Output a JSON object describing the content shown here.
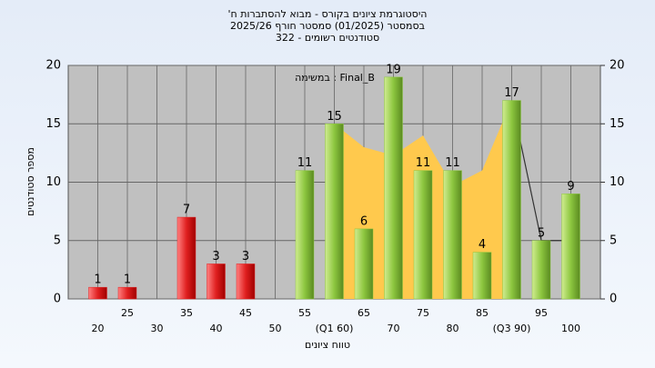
{
  "chart_data": {
    "type": "bar",
    "title_lines": [
      "היסטוגרמת ציונים בקורס - מבוא להסתברות ח'",
      "בסמסטר  (01/2025)  סמסטר חורף 2025/26",
      "סטודנטים רשומים - 322"
    ],
    "annotation": "במשימה : Final_B",
    "y_label": "מספר סטודנטים",
    "x_label": "טווח ציונים",
    "categories": [
      "20",
      "25",
      "30",
      "35",
      "40",
      "45",
      "50",
      "55",
      "(Q1 60)",
      "65",
      "70",
      "75",
      "80",
      "85",
      "(Q3 90)",
      "95",
      "100"
    ],
    "values": [
      1,
      1,
      0,
      7,
      3,
      3,
      0,
      11,
      15,
      6,
      19,
      11,
      11,
      4,
      17,
      5,
      9
    ],
    "colors": [
      "#e02020",
      "#e02020",
      "#e02020",
      "#e02020",
      "#e02020",
      "#e02020",
      "#e02020",
      "#8cc63f",
      "#8cc63f",
      "#8cc63f",
      "#8cc63f",
      "#8cc63f",
      "#8cc63f",
      "#8cc63f",
      "#8cc63f",
      "#8cc63f",
      "#8cc63f"
    ],
    "area": {
      "color": "#ffc94d",
      "values": [
        null,
        null,
        null,
        null,
        null,
        null,
        null,
        null,
        15,
        13,
        12.3,
        14,
        9.7,
        11,
        17,
        null,
        null
      ]
    },
    "line": {
      "color": "#333333",
      "values": [
        null,
        null,
        null,
        null,
        null,
        null,
        null,
        null,
        null,
        null,
        null,
        null,
        null,
        null,
        17,
        5,
        5
      ]
    },
    "ylim": [
      0,
      20
    ],
    "yticks": [
      0,
      5,
      10,
      15,
      20
    ],
    "y2lim": [
      0,
      20
    ],
    "y2ticks": [
      0,
      5,
      10,
      15,
      20
    ],
    "grid": true
  }
}
